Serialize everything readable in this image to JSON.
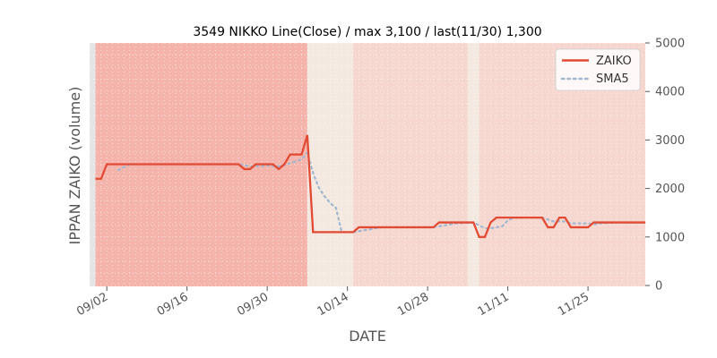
{
  "chart_data": {
    "type": "line",
    "title": "3549 NIKKO Line(Close) / max 3,100 / last(11/30) 1,300",
    "xlabel": "DATE",
    "ylabel": "IPPAN ZAIKO (volume)",
    "ylim": [
      0,
      5000
    ],
    "yticks": [
      "0",
      "1000",
      "2000",
      "3000",
      "4000",
      "5000"
    ],
    "xticks": [
      {
        "label": "09/02",
        "date": "2024-09-02"
      },
      {
        "label": "09/16",
        "date": "2024-09-16"
      },
      {
        "label": "09/30",
        "date": "2024-09-30"
      },
      {
        "label": "10/14",
        "date": "2024-10-14"
      },
      {
        "label": "10/28",
        "date": "2024-10-28"
      },
      {
        "label": "11/11",
        "date": "2024-11-11"
      },
      {
        "label": "11/25",
        "date": "2024-11-25"
      }
    ],
    "xlim": [
      "2024-08-30",
      "2024-12-05"
    ],
    "legend_position": "top-right",
    "grid": true,
    "colors": {
      "zaiko": "#e24a33",
      "sma": "#9fb8cf",
      "grid_dot": "#ffffff",
      "plot_bg": "#e5e5e5"
    },
    "bands": [
      {
        "start": "2024-08-30",
        "end": "2024-08-31",
        "color": "#e5e5e5"
      },
      {
        "start": "2024-08-31",
        "end": "2024-10-07",
        "color": "#f4b4ab"
      },
      {
        "start": "2024-10-07",
        "end": "2024-10-15",
        "color": "#f4e9e1"
      },
      {
        "start": "2024-10-15",
        "end": "2024-11-04",
        "color": "#f5d7cf"
      },
      {
        "start": "2024-11-04",
        "end": "2024-11-06",
        "color": "#f4e9e1"
      },
      {
        "start": "2024-11-06",
        "end": "2024-12-05",
        "color": "#f5d7cf"
      }
    ],
    "series": [
      {
        "name": "ZAIKO",
        "style": "solid",
        "points": [
          [
            "2024-08-31",
            2200
          ],
          [
            "2024-09-01",
            2200
          ],
          [
            "2024-09-02",
            2500
          ],
          [
            "2024-09-25",
            2500
          ],
          [
            "2024-09-26",
            2400
          ],
          [
            "2024-09-27",
            2400
          ],
          [
            "2024-09-28",
            2500
          ],
          [
            "2024-10-01",
            2500
          ],
          [
            "2024-10-02",
            2400
          ],
          [
            "2024-10-03",
            2500
          ],
          [
            "2024-10-04",
            2700
          ],
          [
            "2024-10-06",
            2700
          ],
          [
            "2024-10-07",
            3100
          ],
          [
            "2024-10-08",
            1100
          ],
          [
            "2024-10-15",
            1100
          ],
          [
            "2024-10-16",
            1200
          ],
          [
            "2024-10-29",
            1200
          ],
          [
            "2024-10-30",
            1300
          ],
          [
            "2024-11-05",
            1300
          ],
          [
            "2024-11-06",
            1000
          ],
          [
            "2024-11-07",
            1000
          ],
          [
            "2024-11-08",
            1300
          ],
          [
            "2024-11-09",
            1400
          ],
          [
            "2024-11-17",
            1400
          ],
          [
            "2024-11-18",
            1200
          ],
          [
            "2024-11-19",
            1200
          ],
          [
            "2024-11-20",
            1400
          ],
          [
            "2024-11-21",
            1400
          ],
          [
            "2024-11-22",
            1200
          ],
          [
            "2024-11-25",
            1200
          ],
          [
            "2024-11-26",
            1300
          ],
          [
            "2024-11-30",
            1300
          ],
          [
            "2024-12-05",
            1300
          ]
        ]
      },
      {
        "name": "SMA5",
        "style": "dotted",
        "points": [
          [
            "2024-09-04",
            2380
          ],
          [
            "2024-09-05",
            2440
          ],
          [
            "2024-09-06",
            2500
          ],
          [
            "2024-09-25",
            2500
          ],
          [
            "2024-09-26",
            2480
          ],
          [
            "2024-09-27",
            2460
          ],
          [
            "2024-09-28",
            2460
          ],
          [
            "2024-09-29",
            2460
          ],
          [
            "2024-09-30",
            2480
          ],
          [
            "2024-10-01",
            2460
          ],
          [
            "2024-10-02",
            2460
          ],
          [
            "2024-10-03",
            2480
          ],
          [
            "2024-10-04",
            2520
          ],
          [
            "2024-10-05",
            2560
          ],
          [
            "2024-10-06",
            2600
          ],
          [
            "2024-10-07",
            2740
          ],
          [
            "2024-10-08",
            2320
          ],
          [
            "2024-10-09",
            2020
          ],
          [
            "2024-10-10",
            1840
          ],
          [
            "2024-10-11",
            1700
          ],
          [
            "2024-10-12",
            1600
          ],
          [
            "2024-10-13",
            1100
          ],
          [
            "2024-10-15",
            1100
          ],
          [
            "2024-10-16",
            1120
          ],
          [
            "2024-10-17",
            1140
          ],
          [
            "2024-10-18",
            1160
          ],
          [
            "2024-10-19",
            1180
          ],
          [
            "2024-10-20",
            1200
          ],
          [
            "2024-10-29",
            1200
          ],
          [
            "2024-10-30",
            1220
          ],
          [
            "2024-10-31",
            1240
          ],
          [
            "2024-11-01",
            1260
          ],
          [
            "2024-11-02",
            1280
          ],
          [
            "2024-11-05",
            1300
          ],
          [
            "2024-11-06",
            1240
          ],
          [
            "2024-11-07",
            1180
          ],
          [
            "2024-11-08",
            1180
          ],
          [
            "2024-11-09",
            1200
          ],
          [
            "2024-11-10",
            1220
          ],
          [
            "2024-11-11",
            1340
          ],
          [
            "2024-11-12",
            1400
          ],
          [
            "2024-11-17",
            1400
          ],
          [
            "2024-11-18",
            1360
          ],
          [
            "2024-11-19",
            1320
          ],
          [
            "2024-11-20",
            1320
          ],
          [
            "2024-11-21",
            1320
          ],
          [
            "2024-11-22",
            1280
          ],
          [
            "2024-11-25",
            1280
          ],
          [
            "2024-11-26",
            1260
          ],
          [
            "2024-11-27",
            1280
          ],
          [
            "2024-11-30",
            1300
          ],
          [
            "2024-12-05",
            1300
          ]
        ]
      }
    ]
  }
}
